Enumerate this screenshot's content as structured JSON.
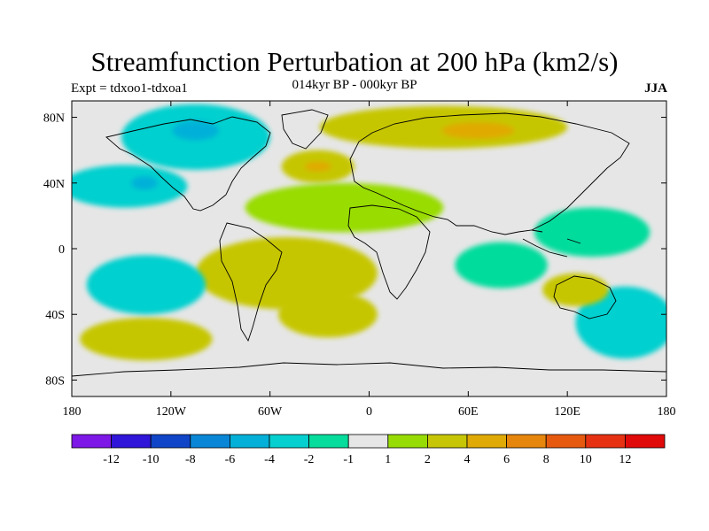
{
  "chart_data": {
    "type": "heatmap",
    "title": "Streamfunction Perturbation at 200 hPa (km2/s)",
    "subtitle": "014kyr BP - 000kyr BP",
    "left_label": "Expt = tdxoo1-tdxoa1",
    "right_label": "JJA",
    "x_range": [
      180,
      540
    ],
    "y_range": [
      -90,
      90
    ],
    "x_ticks": [
      {
        "value": 180,
        "label": "180"
      },
      {
        "value": 240,
        "label": "120W"
      },
      {
        "value": 300,
        "label": "60W"
      },
      {
        "value": 360,
        "label": "0"
      },
      {
        "value": 420,
        "label": "60E"
      },
      {
        "value": 480,
        "label": "120E"
      },
      {
        "value": 540,
        "label": "180"
      }
    ],
    "y_ticks": [
      {
        "value": 80,
        "label": "80N"
      },
      {
        "value": 40,
        "label": "40N"
      },
      {
        "value": 0,
        "label": "0"
      },
      {
        "value": -40,
        "label": "40S"
      },
      {
        "value": -80,
        "label": "80S"
      }
    ],
    "colorbar": {
      "levels": [
        -12,
        -10,
        -8,
        -6,
        -4,
        -2,
        -1,
        1,
        2,
        4,
        6,
        8,
        10,
        12
      ],
      "labels": [
        "-12",
        "-10",
        "-8",
        "-6",
        "-4",
        "-2",
        "-1",
        "1",
        "2",
        "4",
        "6",
        "8",
        "10",
        "12"
      ],
      "colors": [
        "#7d18e6",
        "#2f16d8",
        "#1045c8",
        "#0a86d6",
        "#04b0d8",
        "#06d0cf",
        "#06dc9c",
        "#e6e6e6",
        "#98dc06",
        "#c6c606",
        "#e0aa06",
        "#e6860c",
        "#e65a10",
        "#e63212",
        "#e00a0a"
      ]
    },
    "anomaly_regions": [
      {
        "name": "North America low",
        "lon": 255,
        "lat": 68,
        "rx": 45,
        "ry": 20,
        "level": -3
      },
      {
        "name": "Canada core",
        "lon": 255,
        "lat": 72,
        "rx": 14,
        "ry": 6,
        "level": -4.5
      },
      {
        "name": "East Pacific low",
        "lon": 212,
        "lat": 38,
        "rx": 38,
        "ry": 13,
        "level": -2.5
      },
      {
        "name": "NE Pacific core",
        "lon": 224,
        "lat": 40,
        "rx": 8,
        "ry": 4,
        "level": -4.5
      },
      {
        "name": "Eurasia high",
        "lon": 405,
        "lat": 74,
        "rx": 75,
        "ry": 13,
        "level": 2.5
      },
      {
        "name": "Siberia core",
        "lon": 426,
        "lat": 72,
        "rx": 22,
        "ry": 5,
        "level": 4.5
      },
      {
        "name": "North Atlantic high",
        "lon": 329,
        "lat": 50,
        "rx": 22,
        "ry": 10,
        "level": 3
      },
      {
        "name": "Atlantic core",
        "lon": 329,
        "lat": 50,
        "rx": 8,
        "ry": 3,
        "level": 5
      },
      {
        "name": "Tropical Atlantic",
        "lon": 345,
        "lat": 25,
        "rx": 60,
        "ry": 15,
        "level": 1.8
      },
      {
        "name": "South America high",
        "lon": 310,
        "lat": -15,
        "rx": 55,
        "ry": 22,
        "level": 2.8
      },
      {
        "name": "South Atlantic high",
        "lon": 335,
        "lat": -40,
        "rx": 30,
        "ry": 14,
        "level": 2.5
      },
      {
        "name": "South Pacific high",
        "lon": 225,
        "lat": -55,
        "rx": 40,
        "ry": 13,
        "level": 2.5
      },
      {
        "name": "Central Pacific low",
        "lon": 225,
        "lat": -22,
        "rx": 36,
        "ry": 18,
        "level": -2.5
      },
      {
        "name": "SE Pacific core",
        "lon": 228,
        "lat": -25,
        "rx": 13,
        "ry": 8,
        "level": -4
      },
      {
        "name": "Indian Ocean low",
        "lon": 440,
        "lat": -10,
        "rx": 28,
        "ry": 14,
        "level": -2
      },
      {
        "name": "Southern Ocean low",
        "lon": 515,
        "lat": -45,
        "rx": 30,
        "ry": 22,
        "level": -2.5
      },
      {
        "name": "Australia high",
        "lon": 485,
        "lat": -25,
        "rx": 20,
        "ry": 10,
        "level": 2.5
      },
      {
        "name": "West Pacific low",
        "lon": 495,
        "lat": 10,
        "rx": 35,
        "ry": 15,
        "level": -2
      }
    ]
  }
}
